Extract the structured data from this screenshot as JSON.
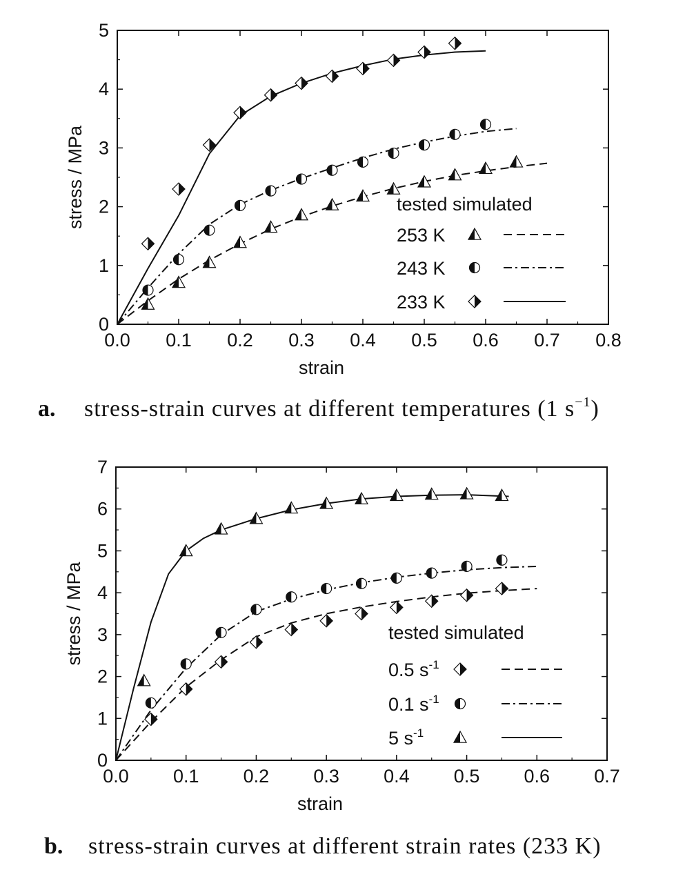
{
  "panels": [
    {
      "id": "a",
      "caption_letter": "a.",
      "caption_text": "stress-strain curves at different temperatures",
      "caption_paren": "(1 s",
      "caption_sup": "−1",
      "caption_close": ")",
      "xlabel": "strain",
      "ylabel": "stress / MPa",
      "legend_header": "tested simulated"
    },
    {
      "id": "b",
      "caption_letter": "b.",
      "caption_text": "stress-strain curves at different strain rates",
      "caption_paren": "(233 K",
      "caption_sup": "",
      "caption_close": ")",
      "xlabel": "strain",
      "ylabel": "stress / MPa",
      "legend_header": "tested simulated"
    }
  ],
  "chart_data": [
    {
      "type": "line",
      "xlabel": "strain",
      "ylabel": "stress / MPa",
      "xlim": [
        0.0,
        0.8
      ],
      "ylim": [
        0,
        5
      ],
      "xticks": [
        "0.0",
        "0.1",
        "0.2",
        "0.3",
        "0.4",
        "0.5",
        "0.6",
        "0.7",
        "0.8"
      ],
      "yticks": [
        "0",
        "1",
        "2",
        "3",
        "4",
        "5"
      ],
      "legend_position": "lower-right",
      "series": [
        {
          "name": "253 K",
          "name_text": "253 K",
          "name_sup": "",
          "marker": "triangle",
          "line": "dashed",
          "tested": [
            [
              0.05,
              0.34
            ],
            [
              0.1,
              0.71
            ],
            [
              0.15,
              1.05
            ],
            [
              0.2,
              1.39
            ],
            [
              0.25,
              1.65
            ],
            [
              0.3,
              1.86
            ],
            [
              0.35,
              2.03
            ],
            [
              0.4,
              2.18
            ],
            [
              0.45,
              2.3
            ],
            [
              0.5,
              2.42
            ],
            [
              0.55,
              2.54
            ],
            [
              0.6,
              2.65
            ],
            [
              0.65,
              2.76
            ]
          ],
          "simulated": [
            [
              0.0,
              0.0
            ],
            [
              0.05,
              0.4
            ],
            [
              0.1,
              0.77
            ],
            [
              0.15,
              1.09
            ],
            [
              0.2,
              1.37
            ],
            [
              0.25,
              1.62
            ],
            [
              0.3,
              1.83
            ],
            [
              0.35,
              2.01
            ],
            [
              0.4,
              2.17
            ],
            [
              0.45,
              2.31
            ],
            [
              0.5,
              2.43
            ],
            [
              0.55,
              2.53
            ],
            [
              0.6,
              2.61
            ],
            [
              0.65,
              2.68
            ],
            [
              0.7,
              2.74
            ]
          ]
        },
        {
          "name": "243 K",
          "name_text": "243 K",
          "name_sup": "",
          "marker": "circle",
          "line": "dashdot",
          "tested": [
            [
              0.05,
              0.58
            ],
            [
              0.1,
              1.1
            ],
            [
              0.15,
              1.6
            ],
            [
              0.2,
              2.02
            ],
            [
              0.25,
              2.27
            ],
            [
              0.3,
              2.47
            ],
            [
              0.35,
              2.62
            ],
            [
              0.4,
              2.76
            ],
            [
              0.45,
              2.91
            ],
            [
              0.5,
              3.05
            ],
            [
              0.55,
              3.23
            ],
            [
              0.6,
              3.4
            ]
          ],
          "simulated": [
            [
              0.0,
              0.0
            ],
            [
              0.05,
              0.62
            ],
            [
              0.1,
              1.2
            ],
            [
              0.15,
              1.7
            ],
            [
              0.2,
              2.04
            ],
            [
              0.25,
              2.28
            ],
            [
              0.3,
              2.48
            ],
            [
              0.35,
              2.66
            ],
            [
              0.4,
              2.83
            ],
            [
              0.45,
              2.98
            ],
            [
              0.5,
              3.1
            ],
            [
              0.55,
              3.2
            ],
            [
              0.6,
              3.28
            ],
            [
              0.65,
              3.33
            ]
          ]
        },
        {
          "name": "233 K",
          "name_text": "233 K",
          "name_sup": "",
          "marker": "diamond",
          "line": "solid",
          "tested": [
            [
              0.05,
              1.37
            ],
            [
              0.1,
              2.3
            ],
            [
              0.15,
              3.05
            ],
            [
              0.2,
              3.6
            ],
            [
              0.25,
              3.9
            ],
            [
              0.3,
              4.1
            ],
            [
              0.35,
              4.22
            ],
            [
              0.4,
              4.35
            ],
            [
              0.45,
              4.49
            ],
            [
              0.5,
              4.63
            ],
            [
              0.55,
              4.78
            ]
          ],
          "simulated": [
            [
              0.0,
              0.0
            ],
            [
              0.05,
              0.95
            ],
            [
              0.1,
              1.85
            ],
            [
              0.15,
              2.9
            ],
            [
              0.2,
              3.55
            ],
            [
              0.25,
              3.88
            ],
            [
              0.3,
              4.1
            ],
            [
              0.35,
              4.27
            ],
            [
              0.4,
              4.4
            ],
            [
              0.45,
              4.51
            ],
            [
              0.5,
              4.58
            ],
            [
              0.55,
              4.63
            ],
            [
              0.6,
              4.65
            ]
          ]
        }
      ]
    },
    {
      "type": "line",
      "xlabel": "strain",
      "ylabel": "stress / MPa",
      "xlim": [
        0.0,
        0.7
      ],
      "ylim": [
        0,
        7
      ],
      "xticks": [
        "0.0",
        "0.1",
        "0.2",
        "0.3",
        "0.4",
        "0.5",
        "0.6",
        "0.7"
      ],
      "yticks": [
        "0",
        "1",
        "2",
        "3",
        "4",
        "5",
        "6",
        "7"
      ],
      "legend_position": "lower-right",
      "series": [
        {
          "name": "0.5 s-1",
          "name_text": "0.5 s",
          "name_sup": "-1",
          "marker": "diamond",
          "line": "dashed",
          "tested": [
            [
              0.05,
              0.98
            ],
            [
              0.1,
              1.7
            ],
            [
              0.15,
              2.35
            ],
            [
              0.2,
              2.82
            ],
            [
              0.25,
              3.12
            ],
            [
              0.3,
              3.33
            ],
            [
              0.35,
              3.5
            ],
            [
              0.4,
              3.65
            ],
            [
              0.45,
              3.8
            ],
            [
              0.5,
              3.94
            ],
            [
              0.55,
              4.1
            ]
          ],
          "simulated": [
            [
              0.0,
              0.0
            ],
            [
              0.05,
              0.92
            ],
            [
              0.1,
              1.75
            ],
            [
              0.15,
              2.4
            ],
            [
              0.2,
              2.95
            ],
            [
              0.25,
              3.28
            ],
            [
              0.3,
              3.5
            ],
            [
              0.35,
              3.66
            ],
            [
              0.4,
              3.79
            ],
            [
              0.45,
              3.9
            ],
            [
              0.5,
              3.99
            ],
            [
              0.55,
              4.05
            ],
            [
              0.6,
              4.1
            ]
          ]
        },
        {
          "name": "0.1 s-1",
          "name_text": "0.1 s",
          "name_sup": "-1",
          "marker": "circle",
          "line": "dashdot",
          "tested": [
            [
              0.05,
              1.37
            ],
            [
              0.1,
              2.3
            ],
            [
              0.15,
              3.05
            ],
            [
              0.2,
              3.6
            ],
            [
              0.25,
              3.9
            ],
            [
              0.3,
              4.1
            ],
            [
              0.35,
              4.22
            ],
            [
              0.4,
              4.35
            ],
            [
              0.45,
              4.47
            ],
            [
              0.5,
              4.63
            ],
            [
              0.55,
              4.78
            ]
          ],
          "simulated": [
            [
              0.0,
              0.0
            ],
            [
              0.05,
              1.2
            ],
            [
              0.1,
              2.2
            ],
            [
              0.15,
              3.0
            ],
            [
              0.2,
              3.55
            ],
            [
              0.25,
              3.85
            ],
            [
              0.3,
              4.07
            ],
            [
              0.35,
              4.24
            ],
            [
              0.4,
              4.37
            ],
            [
              0.45,
              4.47
            ],
            [
              0.5,
              4.55
            ],
            [
              0.55,
              4.6
            ],
            [
              0.6,
              4.63
            ]
          ]
        },
        {
          "name": "5 s-1",
          "name_text": "5 s",
          "name_sup": "-1",
          "marker": "triangle",
          "line": "solid",
          "tested": [
            [
              0.04,
              1.9
            ],
            [
              0.1,
              5.0
            ],
            [
              0.15,
              5.52
            ],
            [
              0.2,
              5.77
            ],
            [
              0.25,
              6.02
            ],
            [
              0.3,
              6.13
            ],
            [
              0.35,
              6.24
            ],
            [
              0.4,
              6.32
            ],
            [
              0.45,
              6.35
            ],
            [
              0.5,
              6.36
            ],
            [
              0.55,
              6.32
            ]
          ],
          "simulated": [
            [
              0.0,
              0.0
            ],
            [
              0.025,
              1.7
            ],
            [
              0.05,
              3.3
            ],
            [
              0.075,
              4.45
            ],
            [
              0.1,
              5.0
            ],
            [
              0.125,
              5.3
            ],
            [
              0.15,
              5.5
            ],
            [
              0.2,
              5.77
            ],
            [
              0.25,
              5.98
            ],
            [
              0.3,
              6.13
            ],
            [
              0.35,
              6.24
            ],
            [
              0.4,
              6.3
            ],
            [
              0.45,
              6.33
            ],
            [
              0.5,
              6.34
            ],
            [
              0.56,
              6.3
            ]
          ]
        }
      ]
    }
  ]
}
